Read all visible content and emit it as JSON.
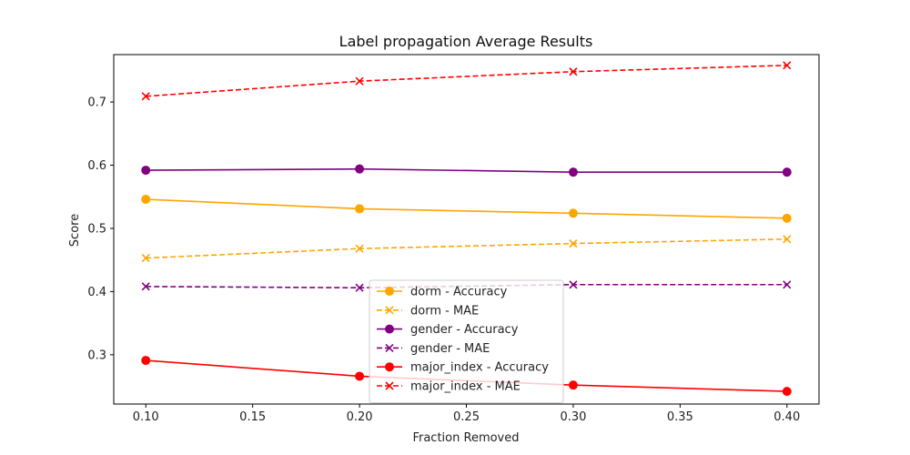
{
  "chart_data": {
    "type": "line",
    "title": "Label propagation Average Results",
    "xlabel": "Fraction Removed",
    "ylabel": "Score",
    "x": [
      0.1,
      0.2,
      0.3,
      0.4
    ],
    "xlim": [
      0.085,
      0.415
    ],
    "ylim": [
      0.222,
      0.775
    ],
    "xticks": [
      "0.10",
      "0.15",
      "0.20",
      "0.25",
      "0.30",
      "0.35",
      "0.40"
    ],
    "yticks": [
      "0.3",
      "0.4",
      "0.5",
      "0.6",
      "0.7"
    ],
    "grid": false,
    "legend_position": "lower-center",
    "series": [
      {
        "name": "dorm - Accuracy",
        "color": "#ffa500",
        "dash": "solid",
        "marker": "circle",
        "values": [
          0.546,
          0.531,
          0.524,
          0.516
        ]
      },
      {
        "name": "dorm - MAE",
        "color": "#ffa500",
        "dash": "dashed",
        "marker": "x",
        "values": [
          0.453,
          0.468,
          0.476,
          0.483
        ]
      },
      {
        "name": "gender - Accuracy",
        "color": "#800080",
        "dash": "solid",
        "marker": "circle",
        "values": [
          0.592,
          0.594,
          0.589,
          0.589
        ]
      },
      {
        "name": "gender - MAE",
        "color": "#800080",
        "dash": "dashed",
        "marker": "x",
        "values": [
          0.408,
          0.406,
          0.411,
          0.411
        ]
      },
      {
        "name": "major_index - Accuracy",
        "color": "#ff0000",
        "dash": "solid",
        "marker": "circle",
        "values": [
          0.291,
          0.266,
          0.252,
          0.242
        ]
      },
      {
        "name": "major_index - MAE",
        "color": "#ff0000",
        "dash": "dashed",
        "marker": "x",
        "values": [
          0.709,
          0.733,
          0.748,
          0.758
        ]
      }
    ]
  }
}
